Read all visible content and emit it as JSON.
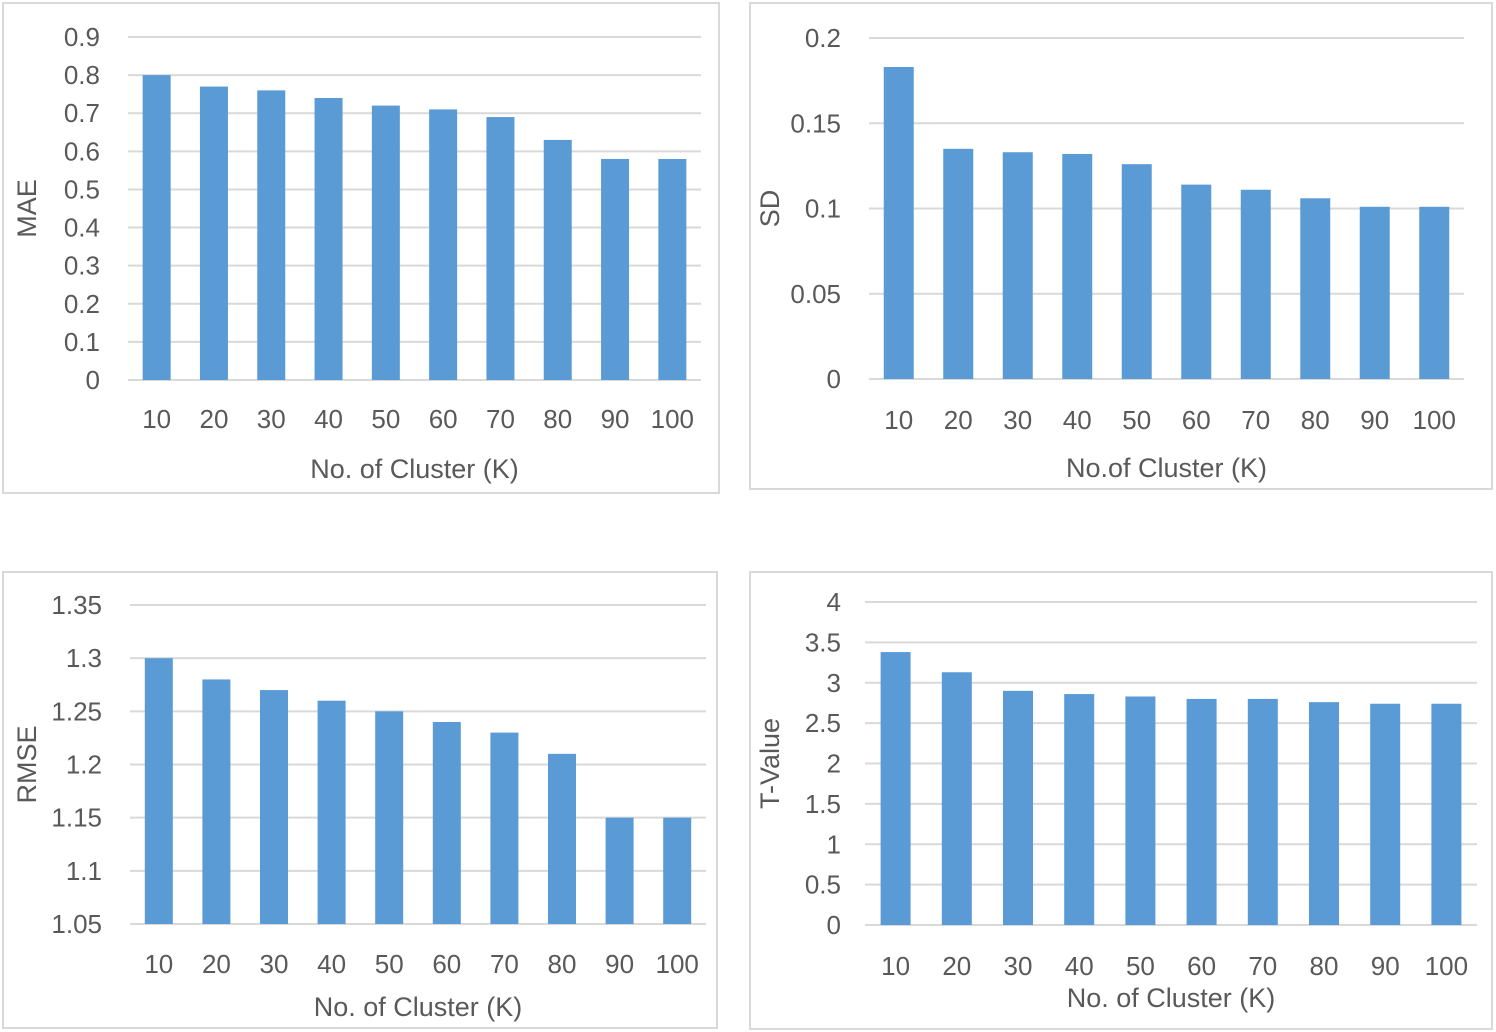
{
  "colors": {
    "bar": "#5b9bd5",
    "grid": "#d9d9d9",
    "text": "#595959",
    "border": "#d9d9d9"
  },
  "chart_data": [
    {
      "type": "bar",
      "categories": [
        "10",
        "20",
        "30",
        "40",
        "50",
        "60",
        "70",
        "80",
        "90",
        "100"
      ],
      "values": [
        0.8,
        0.77,
        0.76,
        0.74,
        0.72,
        0.71,
        0.69,
        0.63,
        0.58,
        0.58
      ],
      "xlabel": "No. of Cluster (K)",
      "ylabel": "MAE",
      "ylim": [
        0,
        0.9
      ],
      "yticks": [
        "0",
        "0.1",
        "0.2",
        "0.3",
        "0.4",
        "0.5",
        "0.6",
        "0.7",
        "0.8",
        "0.9"
      ],
      "grid": true,
      "legend": "none"
    },
    {
      "type": "bar",
      "categories": [
        "10",
        "20",
        "30",
        "40",
        "50",
        "60",
        "70",
        "80",
        "90",
        "100"
      ],
      "values": [
        0.183,
        0.135,
        0.133,
        0.132,
        0.126,
        0.114,
        0.111,
        0.106,
        0.101,
        0.101
      ],
      "xlabel": "No.of Cluster (K)",
      "ylabel": "SD",
      "ylim": [
        0,
        0.2
      ],
      "yticks": [
        "0",
        "0.05",
        "0.1",
        "0.15",
        "0.2"
      ],
      "grid": true,
      "legend": "none"
    },
    {
      "type": "bar",
      "categories": [
        "10",
        "20",
        "30",
        "40",
        "50",
        "60",
        "70",
        "80",
        "90",
        "100"
      ],
      "values": [
        1.3,
        1.28,
        1.27,
        1.26,
        1.25,
        1.24,
        1.23,
        1.21,
        1.15,
        1.15
      ],
      "xlabel": "No. of Cluster (K)",
      "ylabel": "RMSE",
      "ylim": [
        1.05,
        1.35
      ],
      "yticks": [
        "1.05",
        "1.1",
        "1.15",
        "1.2",
        "1.25",
        "1.3",
        "1.35"
      ],
      "grid": true,
      "legend": "none"
    },
    {
      "type": "bar",
      "categories": [
        "10",
        "20",
        "30",
        "40",
        "50",
        "60",
        "70",
        "80",
        "90",
        "100"
      ],
      "values": [
        3.38,
        3.13,
        2.9,
        2.86,
        2.83,
        2.8,
        2.8,
        2.76,
        2.74,
        2.74
      ],
      "xlabel": "No. of Cluster (K)",
      "ylabel": "T-Value",
      "ylim": [
        0,
        4
      ],
      "yticks": [
        "0",
        "0.5",
        "1",
        "1.5",
        "2",
        "2.5",
        "3",
        "3.5",
        "4"
      ],
      "grid": true,
      "legend": "none"
    }
  ]
}
